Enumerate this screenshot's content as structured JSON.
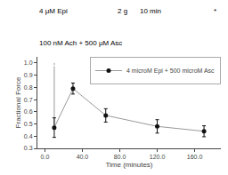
{
  "chart_data": {
    "type": "line",
    "xlabel": "Time (minutes)",
    "ylabel": "Fractional Force",
    "xlim": [
      -8,
      188
    ],
    "ylim": [
      0.3,
      1.05
    ],
    "xticks": [
      {
        "value": 0.0,
        "label": "0.0"
      },
      {
        "value": 40.0,
        "label": "40.0"
      },
      {
        "value": 80.0,
        "label": "80.0"
      },
      {
        "value": 120.0,
        "label": "120.0"
      },
      {
        "value": 160.0,
        "label": "160.0"
      }
    ],
    "yticks": [
      0.3,
      0.4,
      0.5,
      0.6,
      0.7,
      0.8,
      0.9,
      {
        "value": 1.0,
        "label": "1.0"
      }
    ],
    "initial_point": {
      "x": 10,
      "y": 1.0,
      "marker": "open"
    },
    "series": [
      {
        "name": "4 microM Epi + 500 microM Asc",
        "x": [
          10,
          30,
          65,
          120,
          170
        ],
        "values": [
          0.47,
          0.79,
          0.57,
          0.48,
          0.44
        ],
        "error": [
          0.08,
          0.045,
          0.055,
          0.055,
          0.045
        ],
        "color": "#111111",
        "line_color": "#999999",
        "marker": "circle"
      }
    ],
    "annotations": [
      "4 μM Epi",
      "2 g",
      "10 min",
      "*",
      "100 nM Ach + 500 μM Asc"
    ],
    "legend": "upper right",
    "grid": false
  }
}
